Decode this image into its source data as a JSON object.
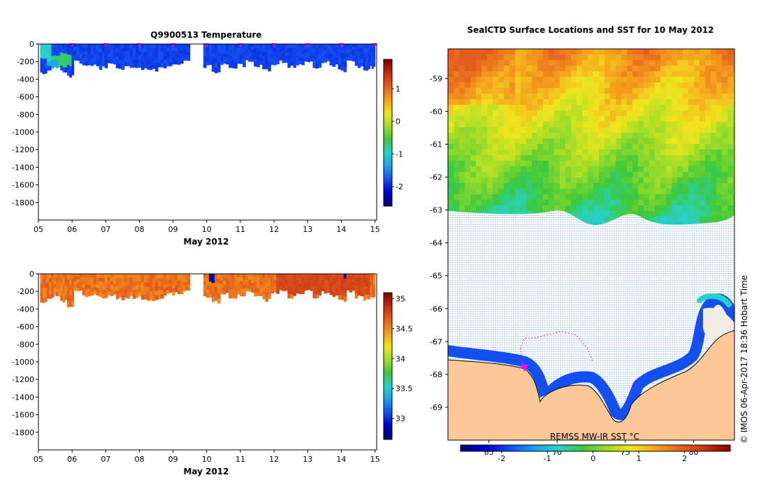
{
  "colors": {
    "background": "#ffffff",
    "land": "#fcc898",
    "ice": "#f2ede4",
    "marker": "#ff00ff",
    "coast": "#000000"
  },
  "chart_data": [
    {
      "id": "temperature",
      "type": "heatmap",
      "title": "Q9900513  Temperature",
      "xlabel": "May 2012",
      "ylabel": "",
      "x_ticks": [
        "05",
        "06",
        "07",
        "08",
        "09",
        "10",
        "11",
        "12",
        "13",
        "14",
        "15"
      ],
      "y_ticks": [
        "0",
        "-200",
        "-400",
        "-600",
        "-800",
        "-1000",
        "-1200",
        "-1400",
        "-1600",
        "-1800"
      ],
      "xlim": [
        5.0,
        15.05
      ],
      "ylim": [
        -2000,
        0
      ],
      "colorbar": {
        "min": -2.6,
        "max": 1.9,
        "ticks": [
          "1",
          "0",
          "-1",
          "-2"
        ],
        "tick_values": [
          1,
          0,
          -1,
          -2
        ]
      },
      "cast_markers": [
        6.0,
        7.0,
        8.0,
        9.0,
        10.0,
        11.0,
        12.0,
        13.0,
        14.0,
        15.0
      ],
      "gap": [
        9.5,
        9.9
      ],
      "profiles": [
        {
          "t": 5.05,
          "depth": 330
        },
        {
          "t": 5.25,
          "depth": 280
        },
        {
          "t": 5.45,
          "depth": 250
        },
        {
          "t": 5.65,
          "depth": 300
        },
        {
          "t": 5.85,
          "depth": 360
        },
        {
          "t": 6.05,
          "depth": 200
        },
        {
          "t": 6.3,
          "depth": 250
        },
        {
          "t": 6.55,
          "depth": 240
        },
        {
          "t": 6.8,
          "depth": 270
        },
        {
          "t": 7.05,
          "depth": 230
        },
        {
          "t": 7.3,
          "depth": 280
        },
        {
          "t": 7.55,
          "depth": 260
        },
        {
          "t": 7.8,
          "depth": 260
        },
        {
          "t": 8.05,
          "depth": 280
        },
        {
          "t": 8.3,
          "depth": 290
        },
        {
          "t": 8.55,
          "depth": 260
        },
        {
          "t": 8.8,
          "depth": 230
        },
        {
          "t": 9.05,
          "depth": 220
        },
        {
          "t": 9.3,
          "depth": 200
        },
        {
          "t": 9.9,
          "depth": 250
        },
        {
          "t": 10.15,
          "depth": 320
        },
        {
          "t": 10.4,
          "depth": 230
        },
        {
          "t": 10.65,
          "depth": 260
        },
        {
          "t": 10.9,
          "depth": 240
        },
        {
          "t": 11.15,
          "depth": 200
        },
        {
          "t": 11.4,
          "depth": 250
        },
        {
          "t": 11.65,
          "depth": 300
        },
        {
          "t": 11.9,
          "depth": 220
        },
        {
          "t": 12.15,
          "depth": 200
        },
        {
          "t": 12.4,
          "depth": 260
        },
        {
          "t": 12.65,
          "depth": 220
        },
        {
          "t": 12.9,
          "depth": 200
        },
        {
          "t": 13.15,
          "depth": 260
        },
        {
          "t": 13.4,
          "depth": 210
        },
        {
          "t": 13.65,
          "depth": 240
        },
        {
          "t": 13.9,
          "depth": 300
        },
        {
          "t": 14.15,
          "depth": 200
        },
        {
          "t": 14.4,
          "depth": 260
        },
        {
          "t": 14.65,
          "depth": 280
        },
        {
          "t": 14.85,
          "depth": 260
        }
      ],
      "value_bands": [
        {
          "t0": 5.05,
          "t1": 5.35,
          "z0": 0,
          "z1": 180,
          "value": -1.0
        },
        {
          "t0": 5.35,
          "t1": 5.95,
          "z0": 120,
          "z1": 260,
          "value": -0.7
        },
        {
          "t0": 5.25,
          "t1": 5.55,
          "z0": 180,
          "z1": 260,
          "value": -1.3
        }
      ],
      "base_value": -1.85
    },
    {
      "id": "salinity",
      "type": "heatmap",
      "title": "",
      "xlabel": "May 2012",
      "ylabel": "",
      "x_ticks": [
        "05",
        "06",
        "07",
        "08",
        "09",
        "10",
        "11",
        "12",
        "13",
        "14",
        "15"
      ],
      "y_ticks": [
        "0",
        "-200",
        "-400",
        "-600",
        "-800",
        "-1000",
        "-1200",
        "-1400",
        "-1600",
        "-1800"
      ],
      "xlim": [
        5.0,
        15.05
      ],
      "ylim": [
        -2000,
        0
      ],
      "colorbar": {
        "min": 32.65,
        "max": 35.1,
        "ticks": [
          "35",
          "34.5",
          "34",
          "33.5",
          "33"
        ],
        "tick_values": [
          35,
          34.5,
          34,
          33.5,
          33
        ]
      },
      "gap": [
        9.5,
        9.9
      ],
      "profiles": [
        {
          "t": 5.05,
          "depth": 330
        },
        {
          "t": 5.25,
          "depth": 280
        },
        {
          "t": 5.45,
          "depth": 250
        },
        {
          "t": 5.65,
          "depth": 300
        },
        {
          "t": 5.85,
          "depth": 360
        },
        {
          "t": 6.05,
          "depth": 200
        },
        {
          "t": 6.3,
          "depth": 250
        },
        {
          "t": 6.55,
          "depth": 240
        },
        {
          "t": 6.8,
          "depth": 270
        },
        {
          "t": 7.05,
          "depth": 230
        },
        {
          "t": 7.3,
          "depth": 280
        },
        {
          "t": 7.55,
          "depth": 260
        },
        {
          "t": 7.8,
          "depth": 260
        },
        {
          "t": 8.05,
          "depth": 280
        },
        {
          "t": 8.3,
          "depth": 290
        },
        {
          "t": 8.55,
          "depth": 260
        },
        {
          "t": 8.8,
          "depth": 230
        },
        {
          "t": 9.05,
          "depth": 220
        },
        {
          "t": 9.3,
          "depth": 200
        },
        {
          "t": 9.9,
          "depth": 250
        },
        {
          "t": 10.15,
          "depth": 320
        },
        {
          "t": 10.4,
          "depth": 230
        },
        {
          "t": 10.65,
          "depth": 260
        },
        {
          "t": 10.9,
          "depth": 240
        },
        {
          "t": 11.15,
          "depth": 200
        },
        {
          "t": 11.4,
          "depth": 250
        },
        {
          "t": 11.65,
          "depth": 300
        },
        {
          "t": 11.9,
          "depth": 220
        },
        {
          "t": 12.15,
          "depth": 200
        },
        {
          "t": 12.4,
          "depth": 260
        },
        {
          "t": 12.65,
          "depth": 220
        },
        {
          "t": 12.9,
          "depth": 200
        },
        {
          "t": 13.15,
          "depth": 260
        },
        {
          "t": 13.4,
          "depth": 210
        },
        {
          "t": 13.65,
          "depth": 240
        },
        {
          "t": 13.9,
          "depth": 300
        },
        {
          "t": 14.15,
          "depth": 200
        },
        {
          "t": 14.4,
          "depth": 260
        },
        {
          "t": 14.65,
          "depth": 280
        },
        {
          "t": 14.85,
          "depth": 260
        }
      ],
      "value_bands": [
        {
          "t0": 10.0,
          "t1": 10.2,
          "z0": 0,
          "z1": 80,
          "value": 32.75
        },
        {
          "t0": 10.2,
          "t1": 10.4,
          "z0": 260,
          "z1": 320,
          "value": 34.55
        },
        {
          "t0": 12.0,
          "t1": 14.8,
          "z0": 0,
          "z1": 250,
          "value": 34.78
        },
        {
          "t0": 14.0,
          "t1": 14.15,
          "z0": 0,
          "z1": 40,
          "value": 32.8
        },
        {
          "t0": 6.7,
          "t1": 6.8,
          "z0": 0,
          "z1": 20,
          "value": 33.0
        }
      ],
      "base_value": 34.6
    },
    {
      "id": "sst_map",
      "type": "heatmap",
      "title": "SealCTD Surface Locations and SST for 10 May 2012",
      "xlabel": "",
      "ylabel": "",
      "xlim": [
        62,
        83
      ],
      "ylim": [
        -70,
        -58.1
      ],
      "y_ticks": [
        "-59",
        "-60",
        "-61",
        "-62",
        "-63",
        "-64",
        "-65",
        "-66",
        "-67",
        "-68",
        "-69"
      ],
      "y_tick_values": [
        -59,
        -60,
        -61,
        -62,
        -63,
        -64,
        -65,
        -66,
        -67,
        -68,
        -69
      ],
      "x_ticks": [
        "65",
        "70",
        "75",
        "80"
      ],
      "x_tick_values": [
        65,
        70,
        75,
        80
      ],
      "colorbar": {
        "min": -2.9,
        "max": 3.0,
        "ticks": [
          "-2",
          "-1",
          "0",
          "1",
          "2"
        ],
        "tick_values": [
          -2,
          -1,
          0,
          1,
          2
        ]
      },
      "colorbar_label": "REMSS MW-IR SST °C",
      "seal_track": [
        [
          67.5,
          -67.8
        ],
        [
          67.3,
          -67.2
        ],
        [
          67.6,
          -66.9
        ],
        [
          68.3,
          -66.9
        ],
        [
          69.2,
          -66.8
        ],
        [
          70.3,
          -66.7
        ],
        [
          71.4,
          -66.8
        ],
        [
          72.2,
          -67.2
        ],
        [
          72.6,
          -67.6
        ]
      ],
      "current_position": [
        67.6,
        -67.8
      ]
    }
  ],
  "credit": "© IMOS 06-Apr-2017 18:36 Hobart Time"
}
